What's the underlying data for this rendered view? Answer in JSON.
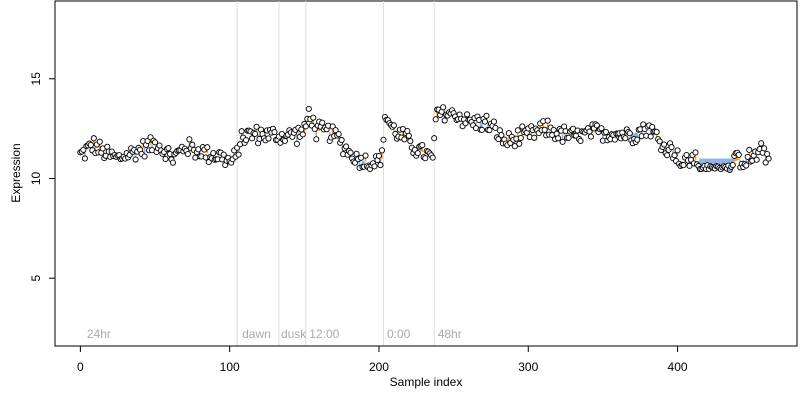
{
  "chart_data": {
    "type": "scatter",
    "title": "",
    "xlabel": "Sample index",
    "ylabel": "Expression",
    "xlim": [
      -17,
      480
    ],
    "ylim": [
      1.6,
      18.9
    ],
    "x_ticks": [
      0,
      100,
      200,
      300,
      400
    ],
    "y_ticks": [
      5,
      10,
      15
    ],
    "grid": false,
    "legend": "none",
    "colors": {
      "point_fill": "#ffffff",
      "point_stroke": "#000000",
      "above_baseline": "#f5a623",
      "below_baseline": "#8fb0e8",
      "boundary": "#dddddd",
      "region_label": "#aaaaaa"
    },
    "boundaries": [
      105,
      133,
      151,
      203,
      237
    ],
    "region_labels": [
      {
        "x": 3,
        "text": "24hr"
      },
      {
        "x": 107,
        "text": "dawn"
      },
      {
        "x": 133,
        "text": "dusk"
      },
      {
        "x": 152,
        "text": "12:00"
      },
      {
        "x": 204,
        "text": "0:00"
      },
      {
        "x": 238,
        "text": "48hr"
      }
    ],
    "anchors": [
      [
        1,
        11.2
      ],
      [
        8,
        11.7
      ],
      [
        15,
        11.3
      ],
      [
        25,
        11.0
      ],
      [
        35,
        11.3
      ],
      [
        45,
        11.6
      ],
      [
        52,
        11.8
      ],
      [
        56,
        11.4
      ],
      [
        62,
        11.0
      ],
      [
        70,
        11.6
      ],
      [
        78,
        11.4
      ],
      [
        88,
        11.2
      ],
      [
        95,
        11.1
      ],
      [
        100,
        10.8
      ],
      [
        104,
        11.0
      ],
      [
        108,
        12.1
      ],
      [
        115,
        12.2
      ],
      [
        125,
        12.2
      ],
      [
        135,
        12.1
      ],
      [
        142,
        12.2
      ],
      [
        150,
        12.3
      ],
      [
        153,
        13.3
      ],
      [
        158,
        12.4
      ],
      [
        168,
        12.3
      ],
      [
        175,
        11.8
      ],
      [
        181,
        11.2
      ],
      [
        188,
        10.9
      ],
      [
        195,
        10.8
      ],
      [
        199,
        10.9
      ],
      [
        202,
        11.0
      ],
      [
        204,
        13.2
      ],
      [
        210,
        12.4
      ],
      [
        218,
        12.0
      ],
      [
        225,
        11.5
      ],
      [
        232,
        11.2
      ],
      [
        236,
        10.9
      ],
      [
        238,
        13.0
      ],
      [
        242,
        13.3
      ],
      [
        252,
        13.2
      ],
      [
        262,
        12.8
      ],
      [
        272,
        12.8
      ],
      [
        280,
        12.2
      ],
      [
        285,
        11.8
      ],
      [
        292,
        12.0
      ],
      [
        302,
        12.2
      ],
      [
        312,
        12.5
      ],
      [
        322,
        12.2
      ],
      [
        332,
        12.1
      ],
      [
        345,
        12.3
      ],
      [
        355,
        12.3
      ],
      [
        365,
        12.2
      ],
      [
        373,
        12.3
      ],
      [
        380,
        12.6
      ],
      [
        385,
        12.2
      ],
      [
        390,
        11.6
      ],
      [
        398,
        11.4
      ],
      [
        403,
        10.7
      ],
      [
        410,
        11.0
      ],
      [
        420,
        10.7
      ],
      [
        428,
        10.5
      ],
      [
        440,
        10.9
      ],
      [
        450,
        11.0
      ],
      [
        455,
        11.3
      ],
      [
        460,
        11.1
      ]
    ],
    "noise_amplitude": 0.55,
    "n_points": 462,
    "dips": [
      {
        "x0": 415,
        "x1": 437,
        "base": 11.0,
        "value": 10.55
      }
    ]
  }
}
